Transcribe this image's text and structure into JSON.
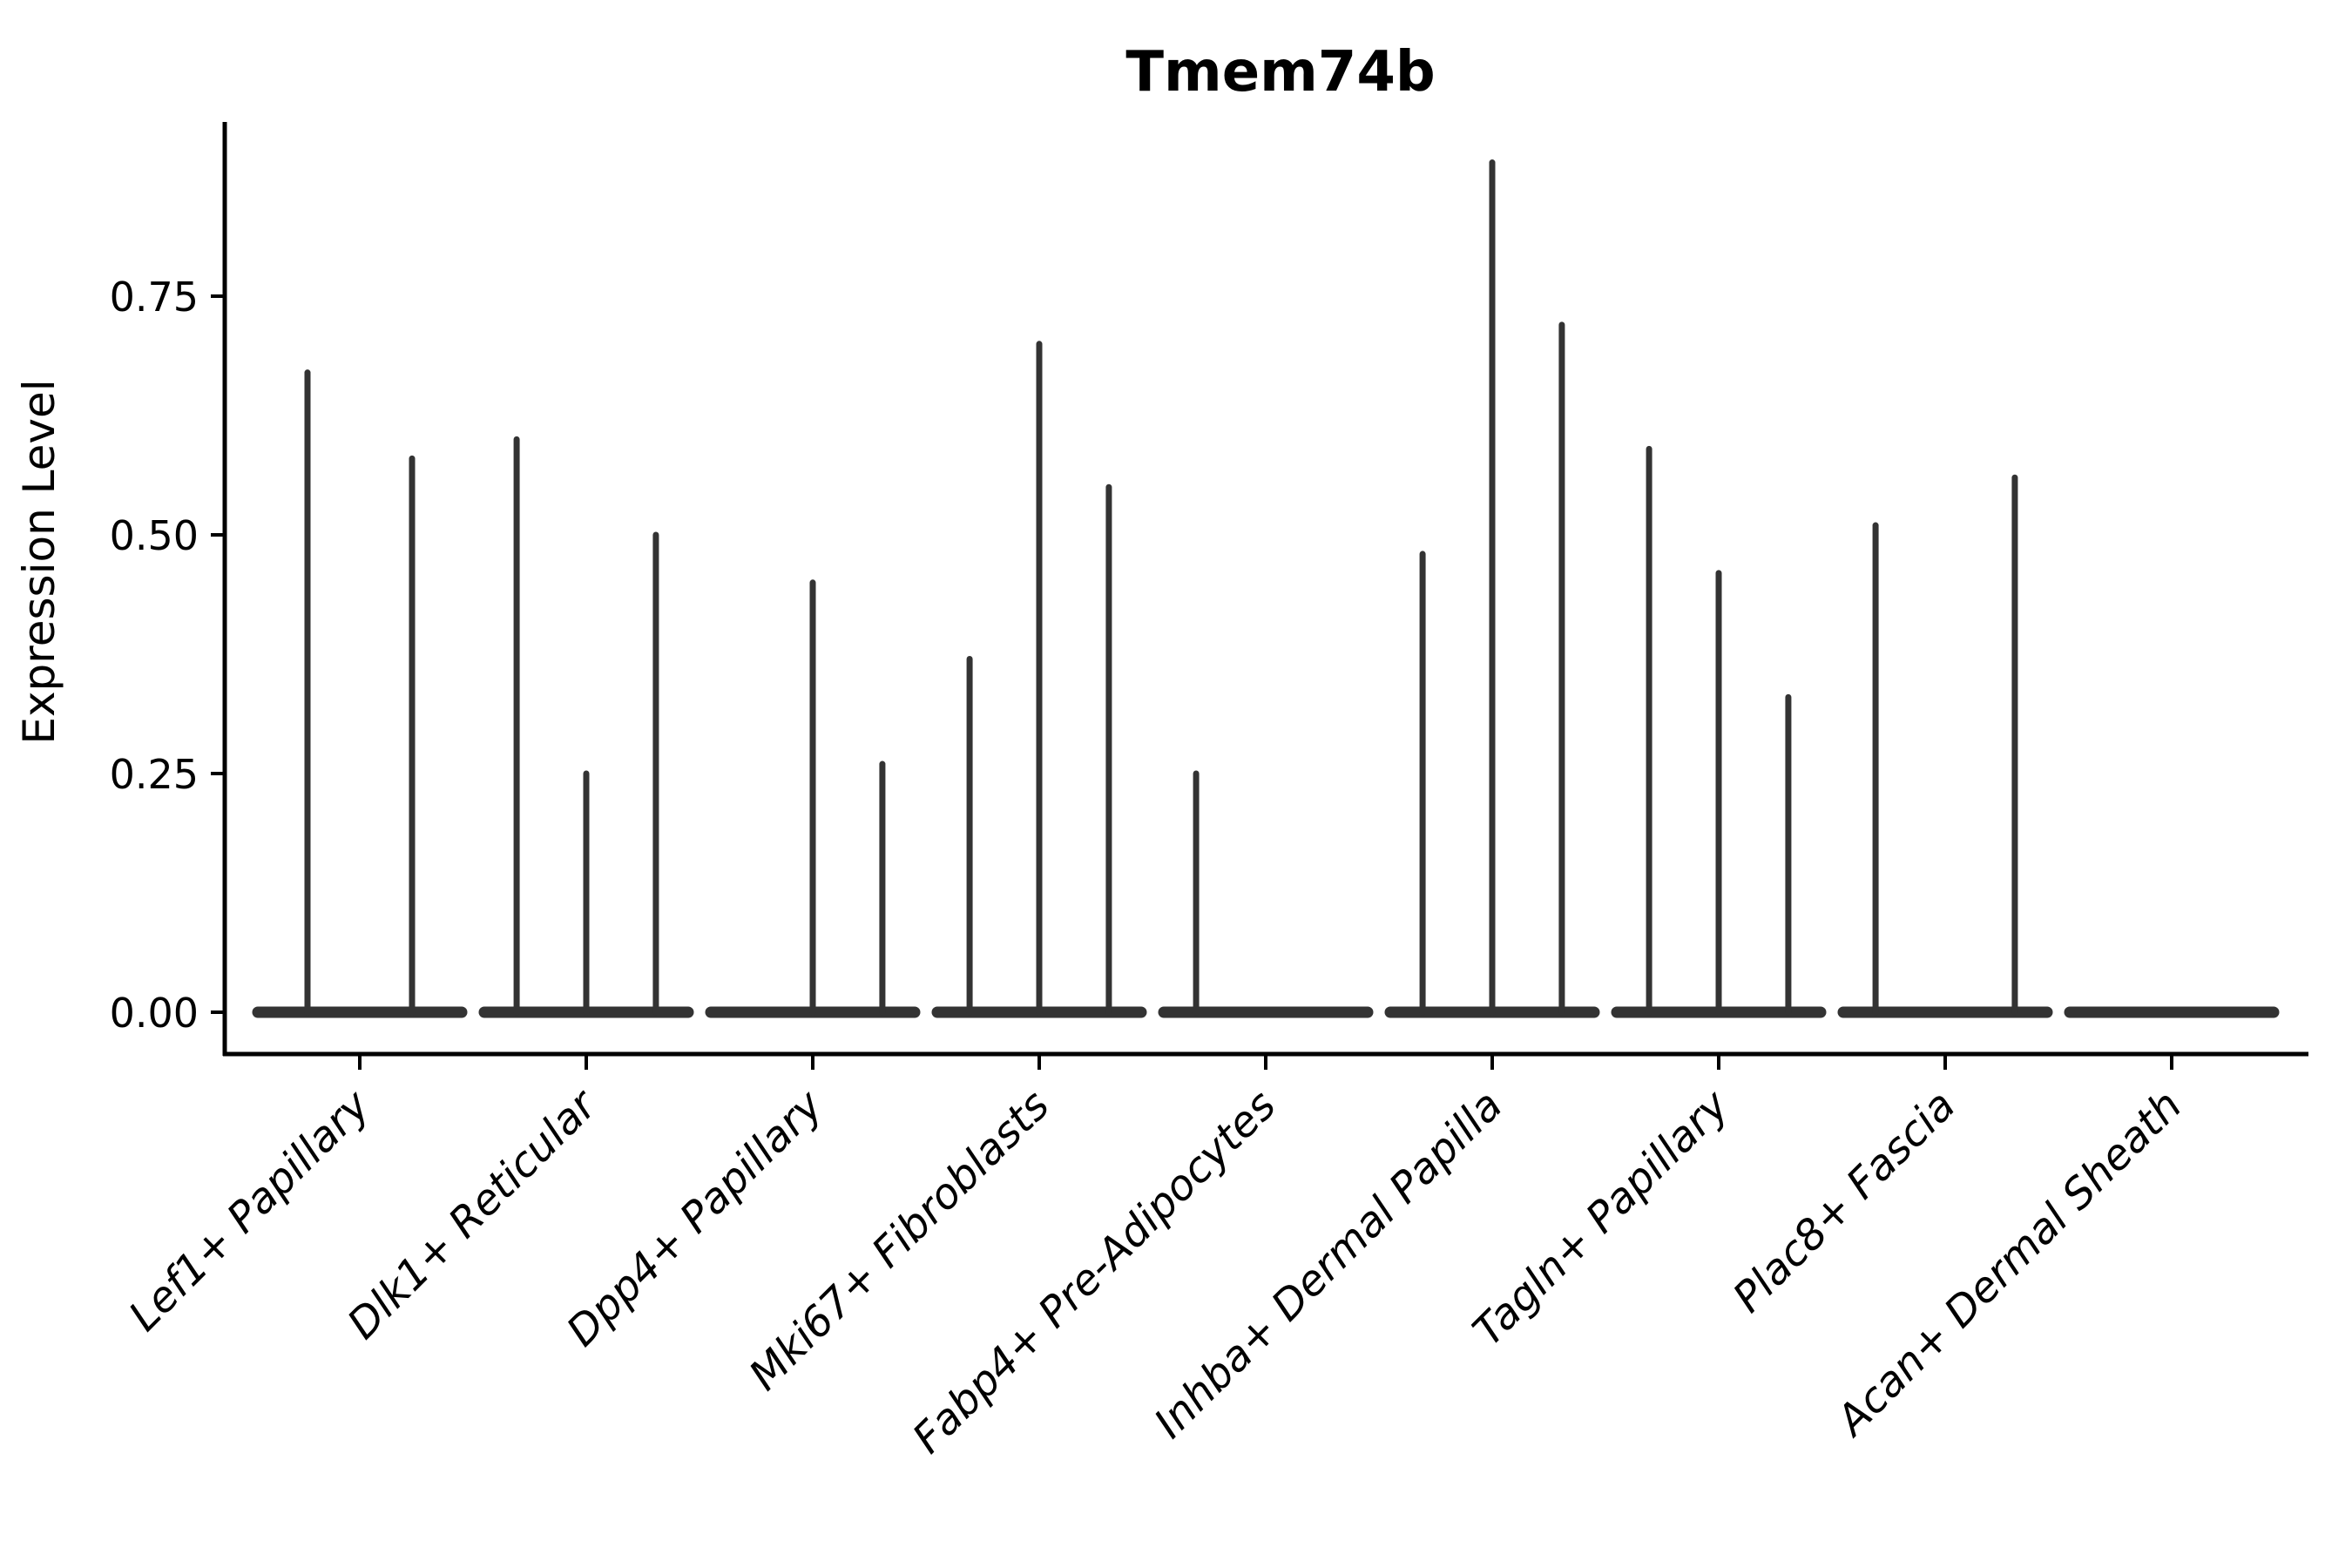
{
  "chart_data": {
    "type": "violin",
    "title": "Tmem74b",
    "ylabel": "Expression Level",
    "xlabel": "",
    "ylim": [
      0,
      0.93
    ],
    "yticks": [
      0.0,
      0.25,
      0.5,
      0.75
    ],
    "ytick_labels": [
      "0.00",
      "0.25",
      "0.50",
      "0.75"
    ],
    "grid": false,
    "legend": "none",
    "categories": [
      "Lef1+ Papillary",
      "Dlk1+ Reticular",
      "Dpp4+ Papillary",
      "Mki67+ Fibroblasts",
      "Fabp4+ Pre-Adipocytes",
      "Inhba+ Dermal Papilla",
      "Tagln+ Papillary",
      "Plac8+ Fascia",
      "Acan+ Dermal Sheath"
    ],
    "groups": [
      {
        "label": "Lef1+ Papillary",
        "spikes": [
          {
            "pos": 0.25,
            "value": 0.67
          },
          {
            "pos": 0.75,
            "value": 0.58
          }
        ]
      },
      {
        "label": "Dlk1+ Reticular",
        "spikes": [
          {
            "pos": 0.167,
            "value": 0.6
          },
          {
            "pos": 0.5,
            "value": 0.25
          },
          {
            "pos": 0.833,
            "value": 0.5
          }
        ]
      },
      {
        "label": "Dpp4+ Papillary",
        "spikes": [
          {
            "pos": 0.5,
            "value": 0.45
          },
          {
            "pos": 0.833,
            "value": 0.26
          }
        ]
      },
      {
        "label": "Mki67+ Fibroblasts",
        "spikes": [
          {
            "pos": 0.167,
            "value": 0.37
          },
          {
            "pos": 0.5,
            "value": 0.7
          },
          {
            "pos": 0.833,
            "value": 0.55
          }
        ]
      },
      {
        "label": "Fabp4+ Pre-Adipocytes",
        "spikes": [
          {
            "pos": 0.167,
            "value": 0.25
          }
        ]
      },
      {
        "label": "Inhba+ Dermal Papilla",
        "spikes": [
          {
            "pos": 0.167,
            "value": 0.48
          },
          {
            "pos": 0.5,
            "value": 0.89
          },
          {
            "pos": 0.833,
            "value": 0.72
          }
        ]
      },
      {
        "label": "Tagln+ Papillary",
        "spikes": [
          {
            "pos": 0.167,
            "value": 0.59
          },
          {
            "pos": 0.5,
            "value": 0.46
          },
          {
            "pos": 0.833,
            "value": 0.33
          }
        ]
      },
      {
        "label": "Plac8+ Fascia",
        "spikes": [
          {
            "pos": 0.167,
            "value": 0.51
          },
          {
            "pos": 0.833,
            "value": 0.56
          }
        ]
      },
      {
        "label": "Acan+ Dermal Sheath",
        "spikes": []
      }
    ],
    "colors": {
      "violin": "#333333",
      "axis": "#000000",
      "text": "#000000",
      "background": "#ffffff"
    }
  }
}
